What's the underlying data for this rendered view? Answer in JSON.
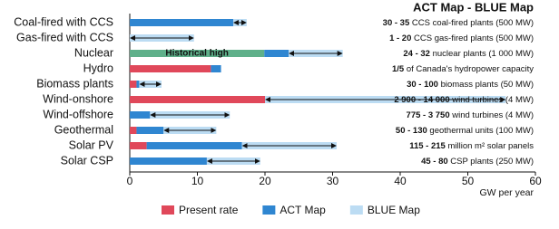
{
  "chart_data": {
    "type": "bar",
    "orientation": "horizontal",
    "title": "ACT Map - BLUE Map",
    "x_label": "GW per year",
    "categories": [
      "Coal-fired with CCS",
      "Gas-fired with CCS",
      "Nuclear",
      "Hydro",
      "Biomass plants",
      "Wind-onshore",
      "Wind-offshore",
      "Geothermal",
      "Solar PV",
      "Solar CSP"
    ],
    "series": [
      {
        "name": "Present rate",
        "color": "#e0485a",
        "values": [
          0,
          0,
          0,
          12,
          1,
          20,
          0,
          1,
          2.5,
          0
        ]
      },
      {
        "name": "ACT Map",
        "color": "#2f86d1",
        "values": [
          15.3,
          0,
          3.6,
          1.5,
          0.4,
          0,
          3,
          4,
          14.1,
          11.4
        ]
      },
      {
        "name": "BLUE Map",
        "color": "#bcdcf3",
        "values": [
          2,
          9.5,
          8,
          0,
          3.3,
          35.6,
          11.8,
          7.8,
          14,
          7.9
        ]
      }
    ],
    "annotations": [
      {
        "text": "Historical high",
        "category": "Nuclear",
        "value": 19.9,
        "color": "#5fb08a"
      }
    ],
    "right_labels": [
      {
        "range": "30 - 35",
        "text": "CCS coal-fired plants (500 MW)"
      },
      {
        "range": "1 - 20",
        "text": "CCS gas-fired plants (500 MW)"
      },
      {
        "range": "24 - 32",
        "text": "nuclear plants (1 000 MW)"
      },
      {
        "range": "1/5",
        "text": "of Canada's hydropower capacity"
      },
      {
        "range": "30 - 100",
        "text": "biomass plants (50 MW)"
      },
      {
        "range": "2 900 - 14 000",
        "text": "wind turbines (4 MW)"
      },
      {
        "range": "775 - 3 750",
        "text": "wind turbines (4 MW)"
      },
      {
        "range": "50 - 130",
        "text": "geothermal units (100 MW)"
      },
      {
        "range": "115 - 215",
        "text": "million m² solar panels"
      },
      {
        "range": "45 - 80",
        "text": "CSP plants (250 MW)"
      }
    ],
    "xlim": [
      0,
      60
    ],
    "xticks": [
      0,
      10,
      20,
      30,
      40,
      50,
      60
    ],
    "legend": "bottom"
  }
}
